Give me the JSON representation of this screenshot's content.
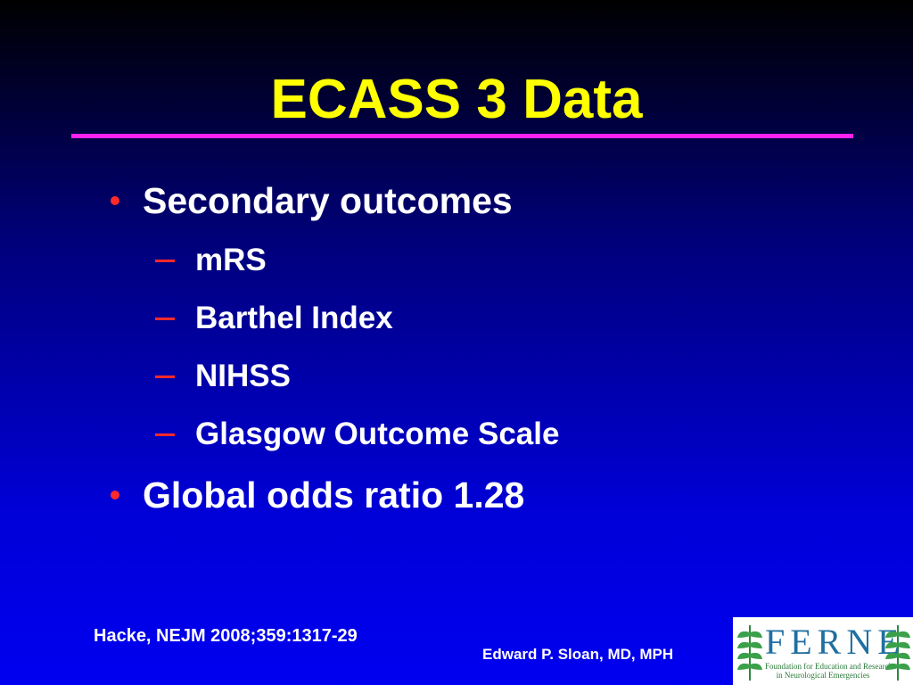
{
  "title": "ECASS 3 Data",
  "bullets": [
    {
      "text": "Secondary outcomes",
      "items": [
        "mRS",
        "Barthel Index",
        "NIHSS",
        "Glasgow Outcome Scale"
      ]
    },
    {
      "text": "Global odds ratio 1.28",
      "items": []
    }
  ],
  "citation": "Hacke, NEJM 2008;359:1317-29",
  "author": "Edward P. Sloan, MD, MPH",
  "logo": {
    "name": "FERNE",
    "subtitle": [
      "Foundation for Education and Research",
      "in Neurological Emergencies"
    ]
  }
}
